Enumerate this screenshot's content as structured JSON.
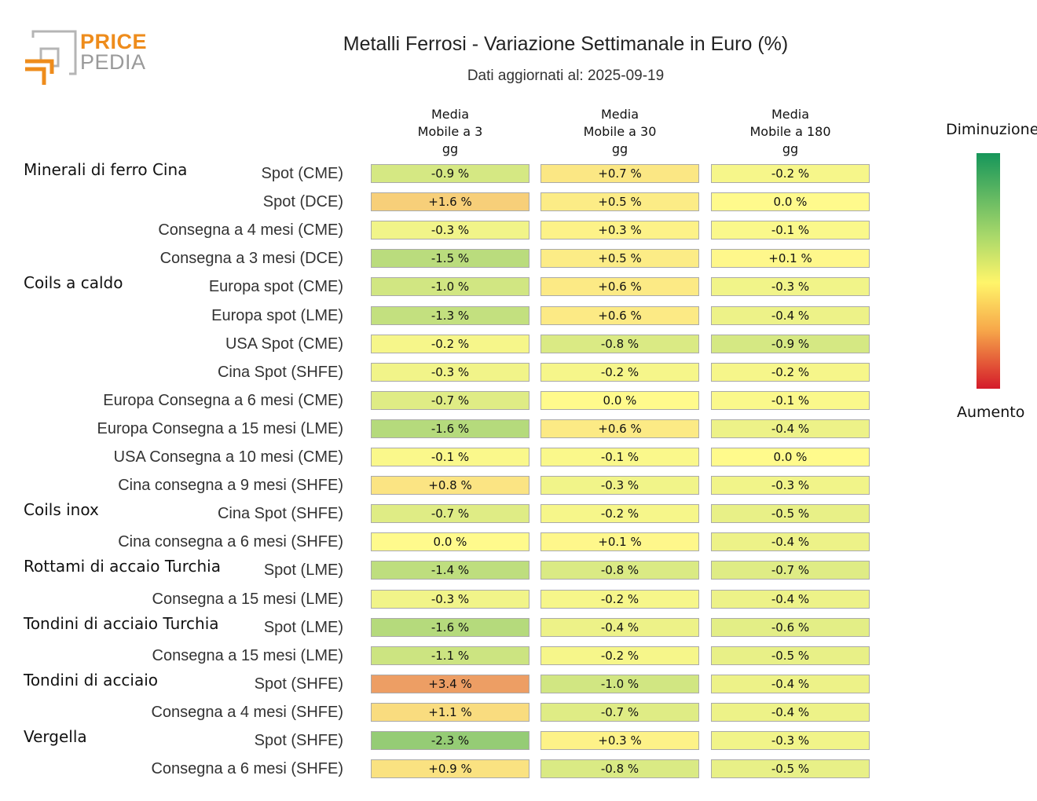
{
  "logo": {
    "line1": "PRICE",
    "line2": "PEDIA"
  },
  "title": "Metalli Ferrosi - Variazione Settimanale in Euro (%)",
  "subtitle": "Dati aggiornati al: 2025-09-19",
  "columns": [
    "Media\nMobile a 3\ngg",
    "Media\nMobile a 30\ngg",
    "Media\nMobile a 180\ngg"
  ],
  "legend": {
    "top": "Diminuzione",
    "bottom": "Aumento"
  },
  "chart_data": {
    "type": "heatmap",
    "title": "Metalli Ferrosi - Variazione Settimanale in Euro (%)",
    "columns": [
      "Media Mobile a 3 gg",
      "Media Mobile a 30 gg",
      "Media Mobile a 180 gg"
    ],
    "rows": [
      {
        "group": "Minerali di ferro Cina",
        "label": "Spot (CME)",
        "values": [
          "-0.9 %",
          "+0.7 %",
          "-0.2 %"
        ]
      },
      {
        "group": "",
        "label": "Spot (DCE)",
        "values": [
          "+1.6 %",
          "+0.5 %",
          "0.0 %"
        ]
      },
      {
        "group": "",
        "label": "Consegna a 4 mesi (CME)",
        "values": [
          "-0.3 %",
          "+0.3 %",
          "-0.1 %"
        ]
      },
      {
        "group": "",
        "label": "Consegna a 3 mesi (DCE)",
        "values": [
          "-1.5 %",
          "+0.5 %",
          "+0.1 %"
        ]
      },
      {
        "group": "Coils a caldo",
        "label": "Europa spot (CME)",
        "values": [
          "-1.0 %",
          "+0.6 %",
          "-0.3 %"
        ]
      },
      {
        "group": "",
        "label": "Europa spot (LME)",
        "values": [
          "-1.3 %",
          "+0.6 %",
          "-0.4 %"
        ]
      },
      {
        "group": "",
        "label": "USA Spot (CME)",
        "values": [
          "-0.2 %",
          "-0.8 %",
          "-0.9 %"
        ]
      },
      {
        "group": "",
        "label": "Cina Spot (SHFE)",
        "values": [
          "-0.3 %",
          "-0.2 %",
          "-0.2 %"
        ]
      },
      {
        "group": "",
        "label": "Europa Consegna a 6 mesi (CME)",
        "values": [
          "-0.7 %",
          "0.0 %",
          "-0.1 %"
        ]
      },
      {
        "group": "",
        "label": "Europa Consegna a 15 mesi (LME)",
        "values": [
          "-1.6 %",
          "+0.6 %",
          "-0.4 %"
        ]
      },
      {
        "group": "",
        "label": "USA Consegna a 10 mesi (CME)",
        "values": [
          "-0.1 %",
          "-0.1 %",
          "0.0 %"
        ]
      },
      {
        "group": "",
        "label": "Cina consegna a 9 mesi (SHFE)",
        "values": [
          "+0.8 %",
          "-0.3 %",
          "-0.3 %"
        ]
      },
      {
        "group": "Coils inox",
        "label": "Cina Spot (SHFE)",
        "values": [
          "-0.7 %",
          "-0.2 %",
          "-0.5 %"
        ]
      },
      {
        "group": "",
        "label": "Cina consegna a 6 mesi (SHFE)",
        "values": [
          "0.0 %",
          "+0.1 %",
          "-0.4 %"
        ]
      },
      {
        "group": "Rottami di accaio Turchia",
        "label": "Spot (LME)",
        "values": [
          "-1.4 %",
          "-0.8 %",
          "-0.7 %"
        ]
      },
      {
        "group": "",
        "label": "Consegna a 15 mesi (LME)",
        "values": [
          "-0.3 %",
          "-0.2 %",
          "-0.4 %"
        ]
      },
      {
        "group": "Tondini di acciaio Turchia",
        "label": "Spot (LME)",
        "values": [
          "-1.6 %",
          "-0.4 %",
          "-0.6 %"
        ]
      },
      {
        "group": "",
        "label": "Consegna a 15 mesi (LME)",
        "values": [
          "-1.1 %",
          "-0.2 %",
          "-0.5 %"
        ]
      },
      {
        "group": "Tondini di acciaio",
        "label": "Spot (SHFE)",
        "values": [
          "+3.4 %",
          "-1.0 %",
          "-0.4 %"
        ]
      },
      {
        "group": "",
        "label": "Consegna a 4 mesi (SHFE)",
        "values": [
          "+1.1 %",
          "-0.7 %",
          "-0.4 %"
        ]
      },
      {
        "group": "Vergella",
        "label": "Spot (SHFE)",
        "values": [
          "-2.3 %",
          "+0.3 %",
          "-0.3 %"
        ]
      },
      {
        "group": "",
        "label": "Consegna a 6 mesi (SHFE)",
        "values": [
          "+0.9 %",
          "-0.8 %",
          "-0.5 %"
        ]
      }
    ],
    "colors": {
      "decrease": "#16965a",
      "neutral": "#fff56a",
      "increase": "#d41a2a"
    }
  }
}
